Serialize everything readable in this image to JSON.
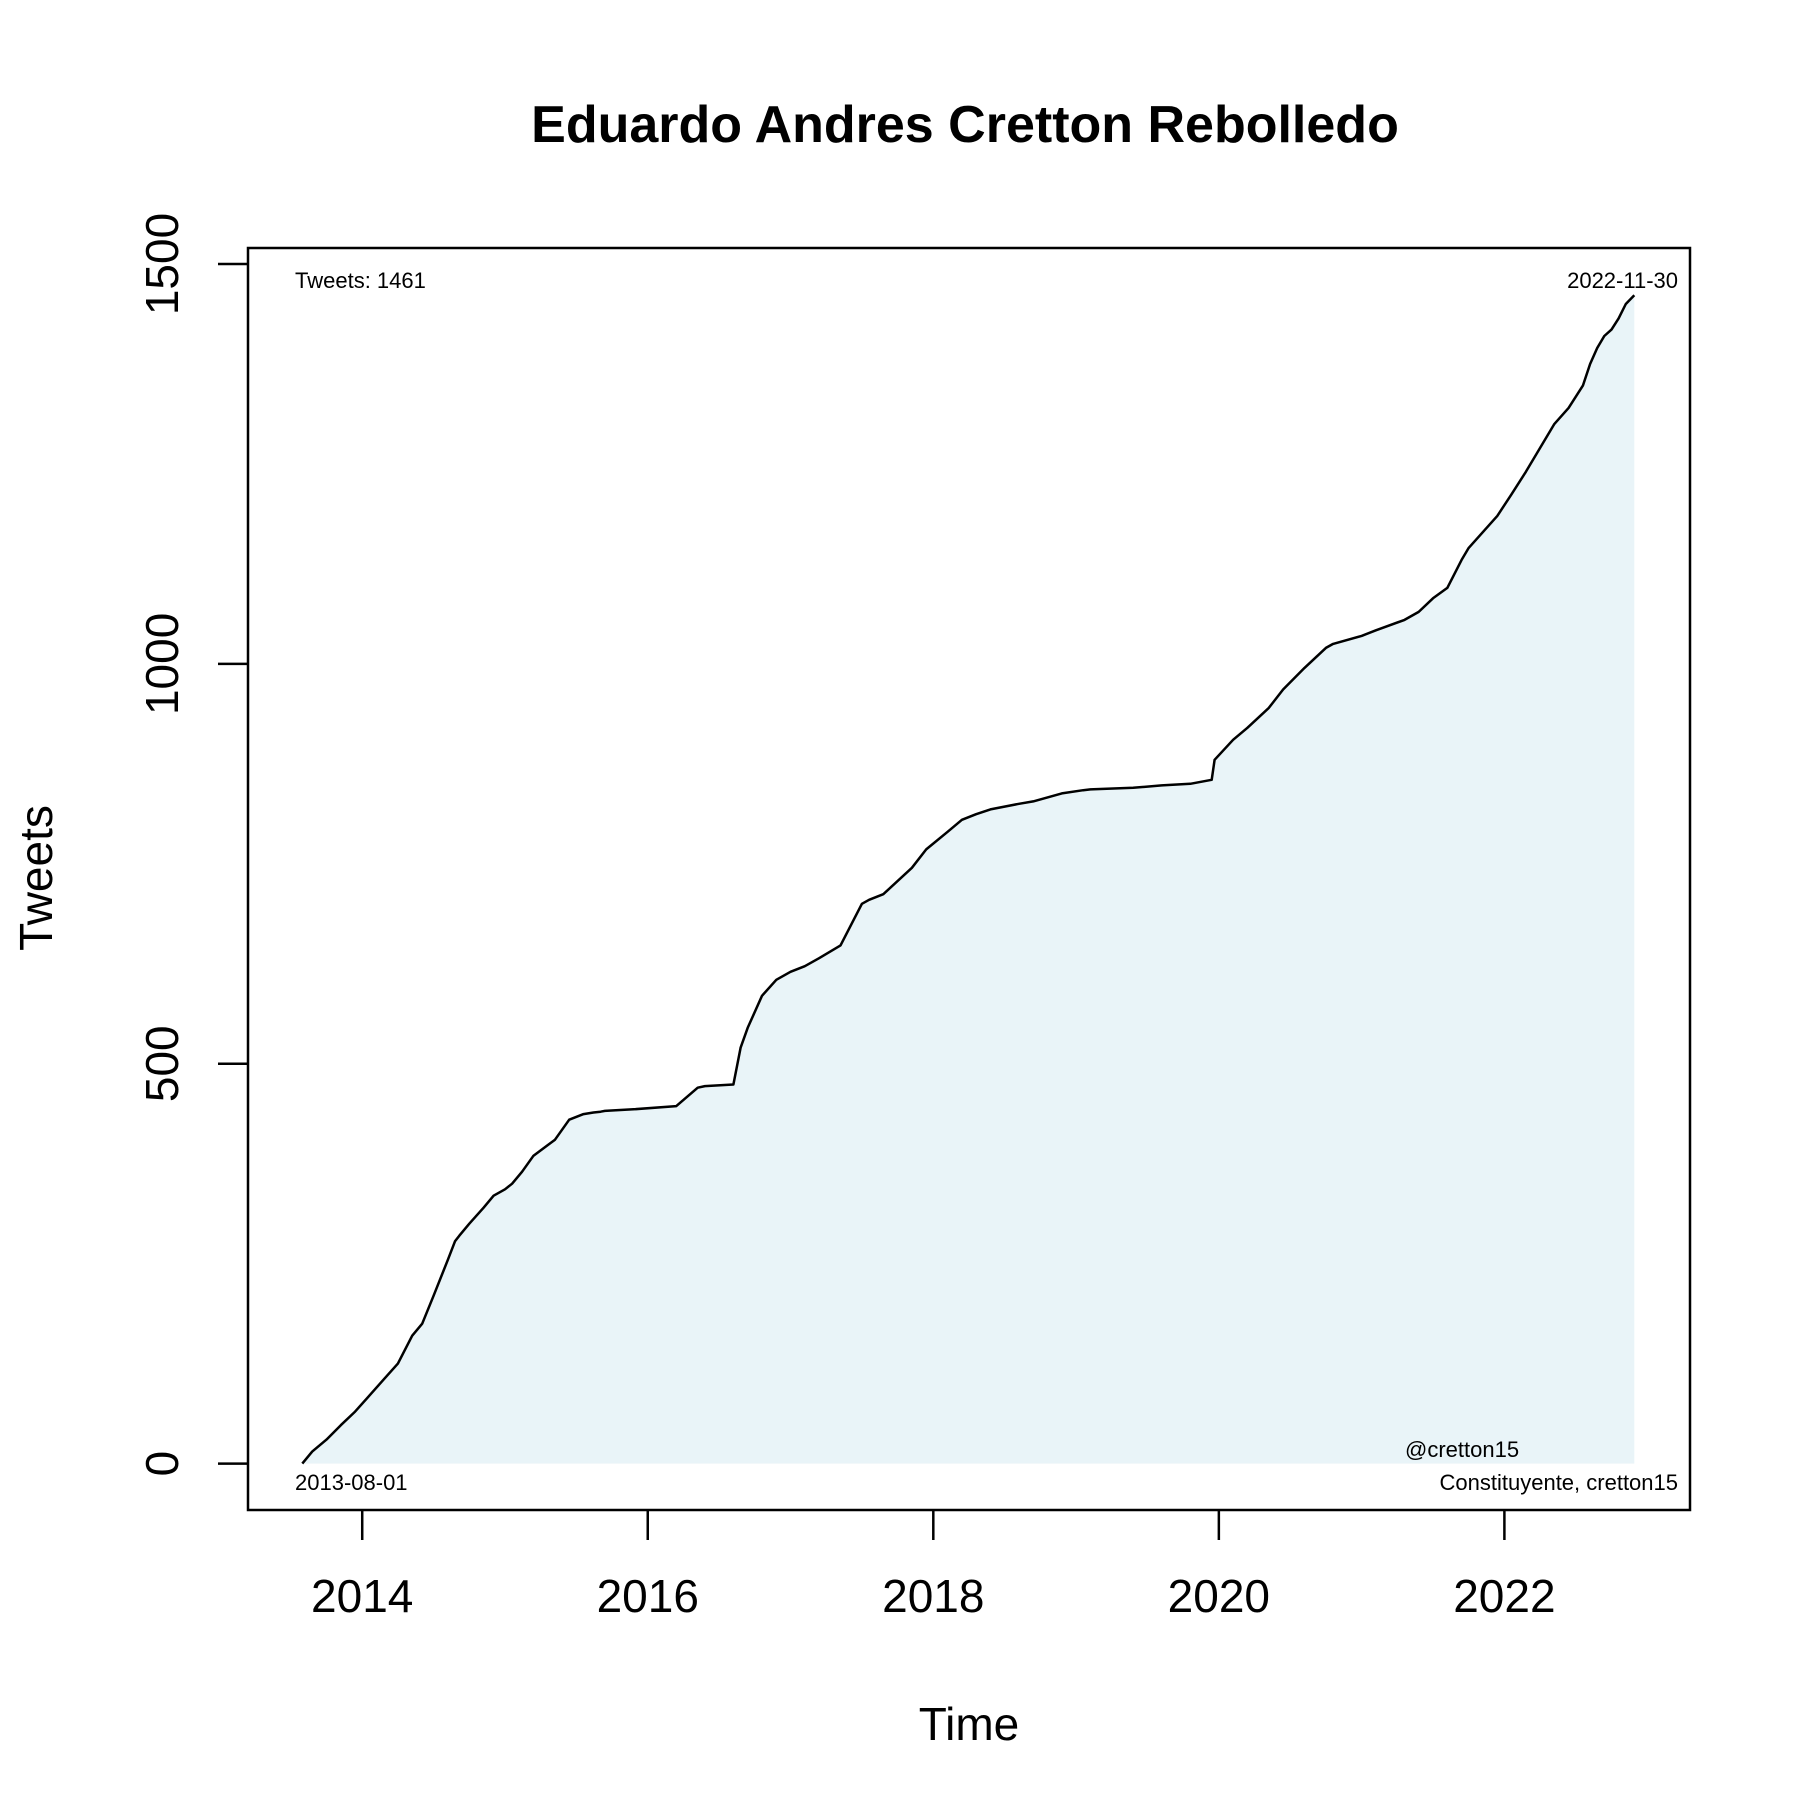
{
  "chart_data": {
    "type": "area",
    "title": "Eduardo Andres Cretton Rebolledo",
    "xlabel": "Time",
    "ylabel": "Tweets",
    "xlim": [
      2013.2,
      2023.3
    ],
    "ylim": [
      -58,
      1520
    ],
    "x_ticks": [
      2014,
      2016,
      2018,
      2020,
      2022
    ],
    "x_tick_labels": [
      "2014",
      "2016",
      "2018",
      "2020",
      "2022"
    ],
    "y_ticks": [
      0,
      500,
      1000,
      1500
    ],
    "y_tick_labels": [
      "0",
      "500",
      "1000",
      "1500"
    ],
    "grid": false,
    "legend": "none",
    "line_color": "#000000",
    "fill_color": "#e9f4f8",
    "annotations": {
      "top_left": "Tweets: 1461",
      "top_right": "2022-11-30",
      "bottom_left": "2013-08-01",
      "bottom_right_1": "@cretton15",
      "bottom_right_2": "Constituyente, cretton15"
    },
    "series": [
      {
        "x": [
          2013.58,
          2013.65,
          2013.75,
          2013.85,
          2013.95,
          2014.05,
          2014.15,
          2014.25,
          2014.35,
          2014.42,
          2014.5,
          2014.6,
          2014.65,
          2014.68,
          2014.75,
          2014.85,
          2014.92,
          2015.0,
          2015.05,
          2015.12,
          2015.2,
          2015.35,
          2015.45,
          2015.55,
          2015.62,
          2015.67,
          2015.7,
          2015.9,
          2016.2,
          2016.35,
          2016.4,
          2016.6,
          2016.65,
          2016.7,
          2016.8,
          2016.9,
          2017.0,
          2017.1,
          2017.2,
          2017.35,
          2017.5,
          2017.55,
          2017.65,
          2017.85,
          2017.95,
          2018.1,
          2018.2,
          2018.3,
          2018.4,
          2018.6,
          2018.7,
          2018.9,
          2019.05,
          2019.1,
          2019.4,
          2019.6,
          2019.8,
          2019.95,
          2019.97,
          2020.1,
          2020.2,
          2020.35,
          2020.45,
          2020.6,
          2020.75,
          2020.8,
          2021.0,
          2021.1,
          2021.3,
          2021.4,
          2021.5,
          2021.6,
          2021.7,
          2021.75,
          2021.85,
          2021.95,
          2022.05,
          2022.15,
          2022.25,
          2022.35,
          2022.45,
          2022.55,
          2022.6,
          2022.65,
          2022.7,
          2022.75,
          2022.8,
          2022.85,
          2022.91
        ],
        "y": [
          0,
          15,
          30,
          48,
          65,
          85,
          105,
          125,
          160,
          175,
          210,
          255,
          278,
          285,
          300,
          320,
          335,
          343,
          350,
          365,
          385,
          405,
          430,
          437,
          439,
          440,
          441,
          443,
          447,
          470,
          472,
          474,
          520,
          545,
          585,
          605,
          615,
          622,
          632,
          648,
          700,
          705,
          712,
          745,
          768,
          790,
          805,
          812,
          818,
          825,
          828,
          838,
          842,
          843,
          845,
          848,
          850,
          855,
          880,
          905,
          920,
          945,
          968,
          995,
          1020,
          1025,
          1035,
          1042,
          1055,
          1065,
          1082,
          1095,
          1130,
          1145,
          1165,
          1185,
          1212,
          1240,
          1270,
          1300,
          1320,
          1348,
          1375,
          1395,
          1410,
          1418,
          1432,
          1450,
          1461
        ]
      }
    ]
  }
}
